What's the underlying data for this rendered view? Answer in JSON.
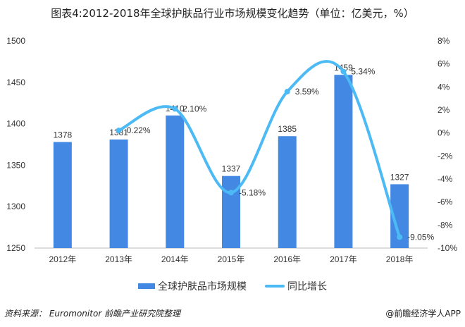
{
  "chart_data": {
    "type": "bar+line",
    "title": "图表4:2012-2018年全球护肤品行业市场规模变化趋势（单位：亿美元，%）",
    "categories": [
      "2012年",
      "2013年",
      "2014年",
      "2015年",
      "2016年",
      "2017年",
      "2018年"
    ],
    "series": [
      {
        "name": "全球护肤品市场规模",
        "type": "bar",
        "axis": "left",
        "values": [
          1378,
          1381,
          1410,
          1337,
          1385,
          1459,
          1327
        ],
        "labels": [
          "1378",
          "1381",
          "1410",
          "1337",
          "1385",
          "1459",
          "1327"
        ],
        "color": "#4388e3"
      },
      {
        "name": "同比增长",
        "type": "line",
        "axis": "right",
        "values": [
          null,
          0.22,
          2.1,
          -5.18,
          3.59,
          5.34,
          -9.05
        ],
        "labels": [
          "",
          "0.22%",
          "2.10%",
          "-5.18%",
          "3.59%",
          "5.34%",
          "-9.05%"
        ],
        "color": "#4cbaf5"
      }
    ],
    "left_axis": {
      "ylim": [
        1250,
        1500
      ],
      "ticks": [
        "1250",
        "1300",
        "1350",
        "1400",
        "1450",
        "1500"
      ]
    },
    "right_axis": {
      "ylim": [
        -10,
        8
      ],
      "ticks": [
        "-10%",
        "-8%",
        "-6%",
        "-4%",
        "-2%",
        "0%",
        "2%",
        "4%",
        "6%",
        "8%"
      ]
    },
    "grid": false,
    "legend": "bottom"
  },
  "footer": {
    "source": "资料来源：  Euromonitor  前瞻产业研究院整理",
    "credit": "@前瞻经济学人APP"
  }
}
